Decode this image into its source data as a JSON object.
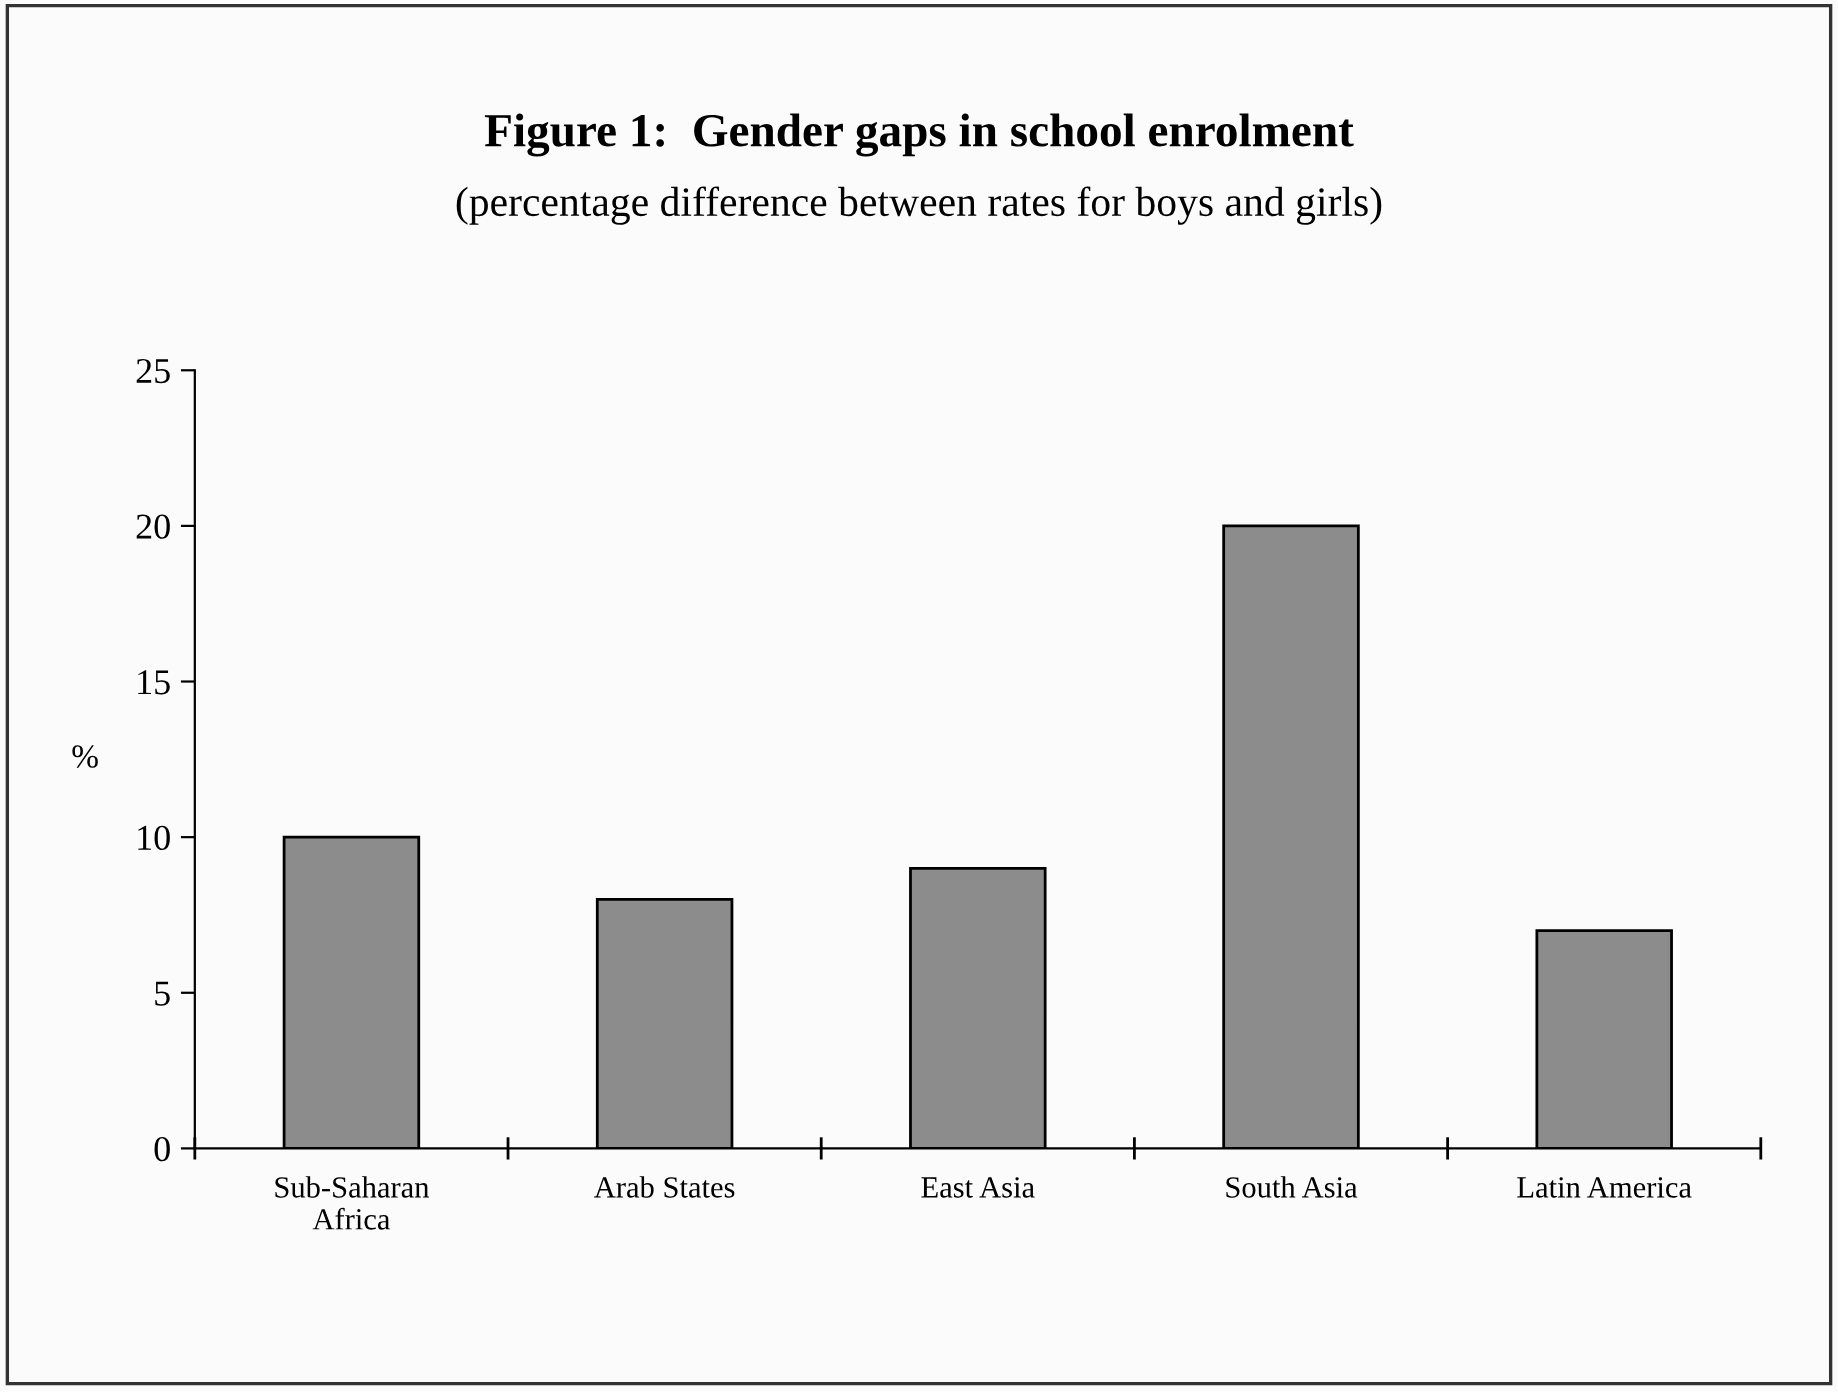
{
  "chart_data": {
    "type": "bar",
    "title": "Figure 1:  Gender gaps in school enrolment",
    "subtitle": "(percentage difference between rates for boys and girls)",
    "ylabel": "%",
    "categories": [
      "Sub-Saharan Africa",
      "Arab States",
      "East Asia",
      "South Asia",
      "Latin America"
    ],
    "values": [
      10,
      8,
      9,
      20,
      7
    ],
    "color": "#8c8c8c",
    "ylim": [
      0,
      25
    ],
    "yticks": [
      0,
      5,
      10,
      15,
      20,
      25
    ],
    "grid": false
  }
}
